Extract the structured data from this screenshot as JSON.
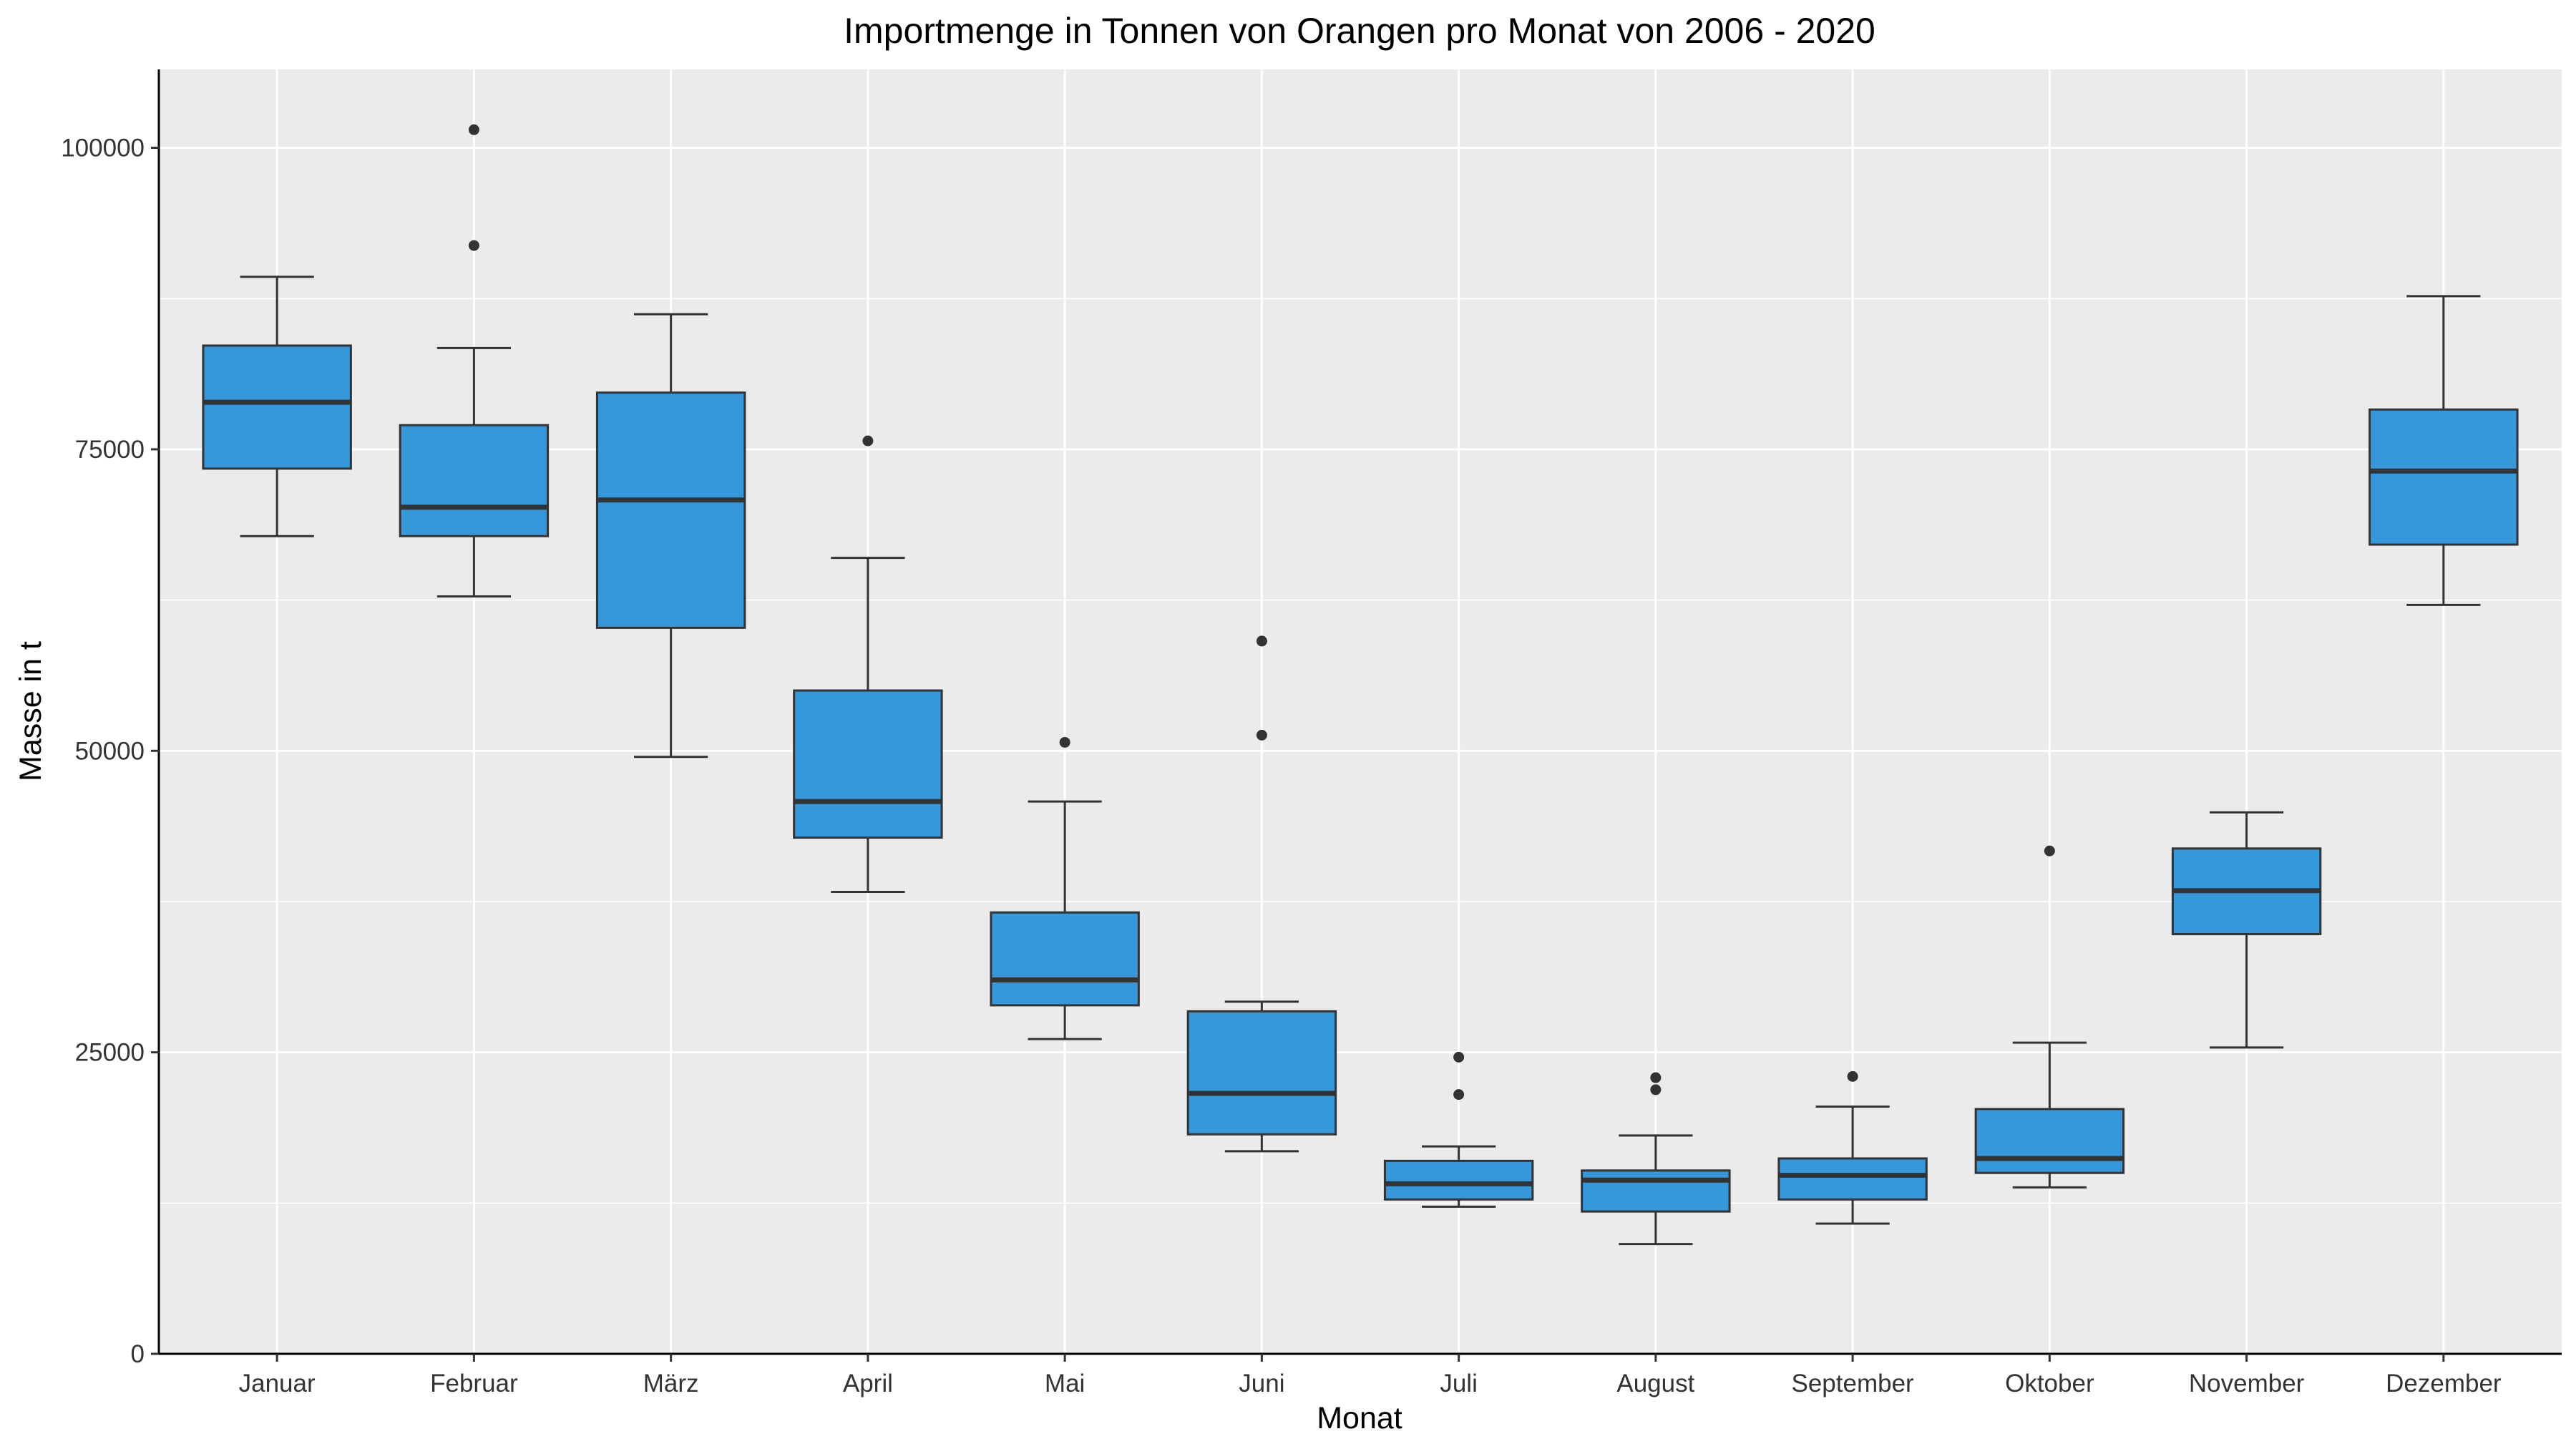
{
  "chart_data": {
    "type": "box",
    "title": "Importmenge in Tonnen von Orangen pro Monat von 2006 - 2020",
    "xlabel": "Monat",
    "ylabel": "Masse in t",
    "ylim": [
      0,
      106500
    ],
    "yticks": [
      0,
      25000,
      50000,
      75000,
      100000
    ],
    "ytick_labels": [
      "0",
      "25000",
      "50000",
      "75000",
      "100000"
    ],
    "grid": true,
    "legend": "none",
    "colors": {
      "panel": "#ebebeb",
      "grid": "#ffffff",
      "box_fill": "#3498db",
      "box_line": "#333333",
      "outlier": "#333333"
    },
    "categories": [
      "Januar",
      "Februar",
      "März",
      "April",
      "Mai",
      "Juni",
      "Juli",
      "August",
      "September",
      "Oktober",
      "November",
      "Dezember"
    ],
    "boxes": [
      {
        "min": 67800,
        "q1": 73400,
        "median": 78900,
        "q3": 83600,
        "max": 89300,
        "outliers": []
      },
      {
        "min": 62800,
        "q1": 67800,
        "median": 70200,
        "q3": 77000,
        "max": 83400,
        "outliers": [
          91900,
          101500
        ]
      },
      {
        "min": 49500,
        "q1": 60200,
        "median": 70800,
        "q3": 79700,
        "max": 86200,
        "outliers": []
      },
      {
        "min": 38300,
        "q1": 42800,
        "median": 45800,
        "q3": 55000,
        "max": 66000,
        "outliers": [
          75700
        ]
      },
      {
        "min": 26100,
        "q1": 28900,
        "median": 31000,
        "q3": 36600,
        "max": 45800,
        "outliers": [
          50700
        ]
      },
      {
        "min": 16800,
        "q1": 18200,
        "median": 21600,
        "q3": 28400,
        "max": 29200,
        "outliers": [
          51300,
          59100
        ]
      },
      {
        "min": 12200,
        "q1": 12800,
        "median": 14100,
        "q3": 16000,
        "max": 17200,
        "outliers": [
          21500,
          24600
        ]
      },
      {
        "min": 9100,
        "q1": 11800,
        "median": 14400,
        "q3": 15200,
        "max": 18100,
        "outliers": [
          21900,
          22900
        ]
      },
      {
        "min": 10800,
        "q1": 12800,
        "median": 14800,
        "q3": 16200,
        "max": 20500,
        "outliers": [
          23000
        ]
      },
      {
        "min": 13800,
        "q1": 15000,
        "median": 16200,
        "q3": 20300,
        "max": 25800,
        "outliers": [
          41700
        ]
      },
      {
        "min": 25400,
        "q1": 34800,
        "median": 38400,
        "q3": 41900,
        "max": 44900,
        "outliers": []
      },
      {
        "min": 62100,
        "q1": 67100,
        "median": 73200,
        "q3": 78300,
        "max": 87700,
        "outliers": []
      }
    ]
  }
}
